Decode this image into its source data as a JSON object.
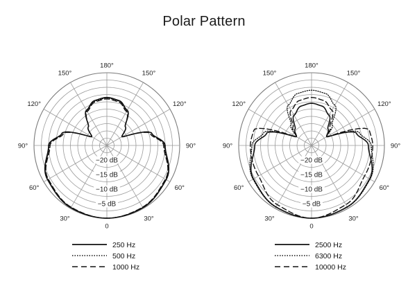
{
  "title": "Polar Pattern",
  "chart_data": [
    {
      "type": "polar",
      "db_labels": [
        "−20 dB",
        "−15 dB",
        "−10 dB",
        "−5 dB"
      ],
      "radial_ticks_db": [
        -20,
        -15,
        -10,
        -5,
        0
      ],
      "angle_labels": [
        "0",
        "30°",
        "60°",
        "90°",
        "120°",
        "150°",
        "180°",
        "150°",
        "120°",
        "90°",
        "60°",
        "30°"
      ],
      "angles_deg": [
        0,
        30,
        60,
        90,
        120,
        150,
        180,
        210,
        240,
        270,
        300,
        330
      ],
      "grid": true,
      "legend_placement": "bottom",
      "series": [
        {
          "name": "250 Hz",
          "style": "solid",
          "angles": [
            0,
            30,
            60,
            90,
            105,
            120,
            135,
            150,
            165,
            180
          ],
          "db": [
            0,
            -0.3,
            -1.5,
            -5,
            -9,
            -19,
            -16,
            -11,
            -9,
            -8.5
          ]
        },
        {
          "name": "500 Hz",
          "style": "dotted",
          "angles": [
            0,
            30,
            60,
            90,
            105,
            120,
            135,
            150,
            165,
            180
          ],
          "db": [
            0,
            -0.4,
            -1.6,
            -5.2,
            -9,
            -19,
            -16,
            -11.2,
            -9.2,
            -8.7
          ]
        },
        {
          "name": "1000 Hz",
          "style": "dashed",
          "angles": [
            0,
            30,
            60,
            90,
            105,
            120,
            135,
            150,
            165,
            180
          ],
          "db": [
            0,
            -0.5,
            -1.8,
            -5.5,
            -9.5,
            -19,
            -16,
            -11.5,
            -9.5,
            -9
          ]
        }
      ]
    },
    {
      "type": "polar",
      "db_labels": [
        "−20 dB",
        "−15 dB",
        "−10 dB",
        "−5 dB"
      ],
      "radial_ticks_db": [
        -20,
        -15,
        -10,
        -5,
        0
      ],
      "angle_labels": [
        "0",
        "30°",
        "60°",
        "90°",
        "120°",
        "150°",
        "180°",
        "150°",
        "120°",
        "90°",
        "60°",
        "30°"
      ],
      "angles_deg": [
        0,
        30,
        60,
        90,
        120,
        150,
        180,
        210,
        240,
        270,
        300,
        330
      ],
      "grid": true,
      "legend_placement": "bottom",
      "series": [
        {
          "name": "2500 Hz",
          "style": "solid",
          "angles": [
            0,
            30,
            60,
            90,
            105,
            120,
            135,
            150,
            165,
            180
          ],
          "db": [
            0,
            -0.6,
            -2,
            -5.5,
            -9,
            -19,
            -17,
            -13,
            -11,
            -10.5
          ]
        },
        {
          "name": "6300 Hz",
          "style": "dotted",
          "angles": [
            0,
            30,
            60,
            90,
            105,
            120,
            135,
            150,
            165,
            180
          ],
          "db": [
            0,
            -0.5,
            -1.8,
            -4.5,
            -8,
            -19,
            -15,
            -9,
            -6.5,
            -6
          ]
        },
        {
          "name": "10000 Hz",
          "style": "dashed",
          "angles": [
            0,
            30,
            60,
            90,
            105,
            120,
            135,
            150,
            165,
            180
          ],
          "db": [
            0,
            -1.5,
            -4,
            -4,
            -4.5,
            -19,
            -16,
            -11,
            -9,
            -8.5
          ]
        }
      ]
    }
  ]
}
